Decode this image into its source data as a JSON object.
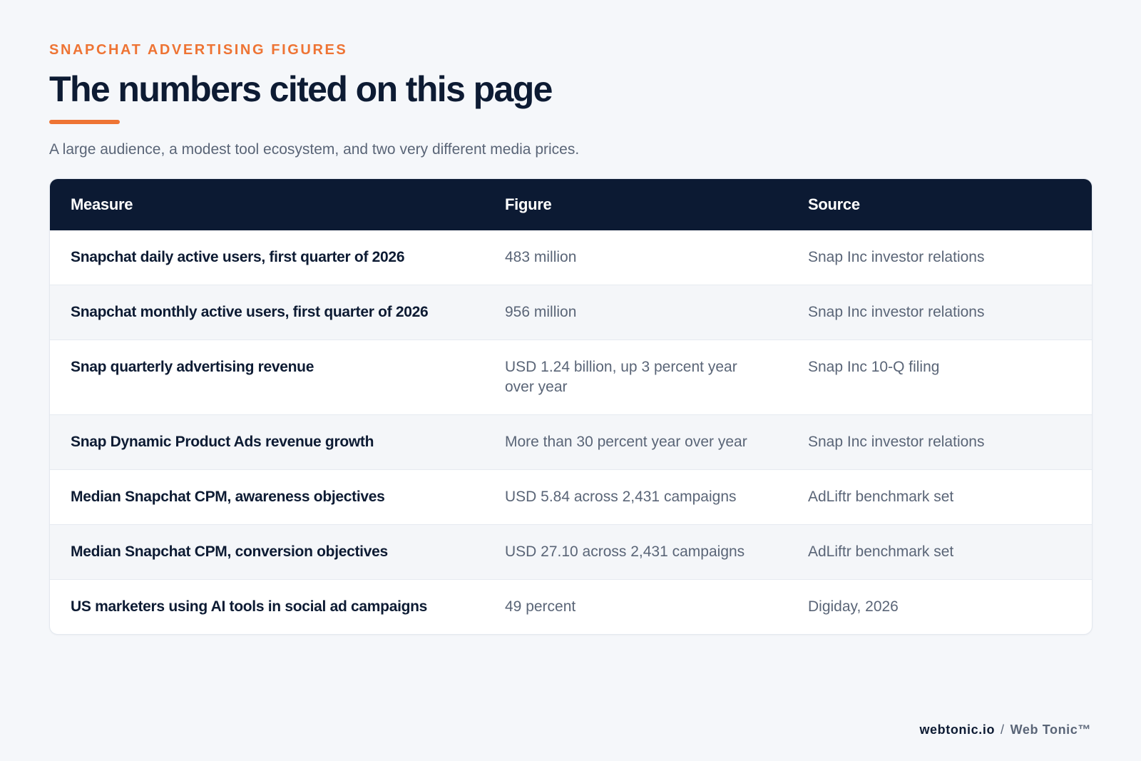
{
  "header": {
    "eyebrow": "SNAPCHAT ADVERTISING FIGURES",
    "title": "The numbers cited on this page",
    "subtitle": "A large audience, a modest tool ecosystem, and two very different media prices.",
    "accent_color": "#ee7434"
  },
  "table": {
    "header_color": "#0c1a33",
    "columns": [
      "Measure",
      "Figure",
      "Source"
    ],
    "rows": [
      {
        "measure": "Snapchat daily active users, first quarter of 2026",
        "figure": "483 million",
        "source": "Snap Inc investor relations"
      },
      {
        "measure": "Snapchat monthly active users, first quarter of 2026",
        "figure": "956 million",
        "source": "Snap Inc investor relations"
      },
      {
        "measure": "Snap quarterly advertising revenue",
        "figure": "USD 1.24 billion, up 3 percent year over year",
        "source": "Snap Inc 10-Q filing"
      },
      {
        "measure": "Snap Dynamic Product Ads revenue growth",
        "figure": "More than 30 percent year over year",
        "source": "Snap Inc investor relations"
      },
      {
        "measure": "Median Snapchat CPM, awareness objectives",
        "figure": "USD 5.84 across 2,431 campaigns",
        "source": "AdLiftr benchmark set"
      },
      {
        "measure": "Median Snapchat CPM, conversion objectives",
        "figure": "USD 27.10 across 2,431 campaigns",
        "source": "AdLiftr benchmark set"
      },
      {
        "measure": "US marketers using AI tools in social ad campaigns",
        "figure": "49 percent",
        "source": "Digiday, 2026"
      }
    ]
  },
  "footer": {
    "site": "webtonic.io",
    "separator": "/",
    "brand": "Web Tonic™"
  }
}
